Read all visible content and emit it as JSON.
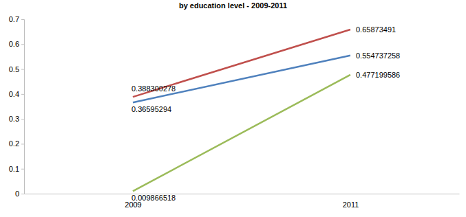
{
  "chart_data": {
    "type": "line",
    "title": "by education level - 2009-2011",
    "categories": [
      "2009",
      "2011"
    ],
    "series": [
      {
        "color": "#c0504d",
        "values": [
          0.388300278,
          0.65873491
        ]
      },
      {
        "color": "#4f81bd",
        "values": [
          0.36595294,
          0.554737258
        ]
      },
      {
        "color": "#9bbb59",
        "values": [
          0.009866518,
          0.477199586
        ]
      }
    ],
    "ylim": [
      0,
      0.7
    ],
    "yticks": [
      0,
      0.1,
      0.2,
      0.3,
      0.4,
      0.5,
      0.6,
      0.7
    ],
    "grid": false,
    "data_labels": true
  }
}
